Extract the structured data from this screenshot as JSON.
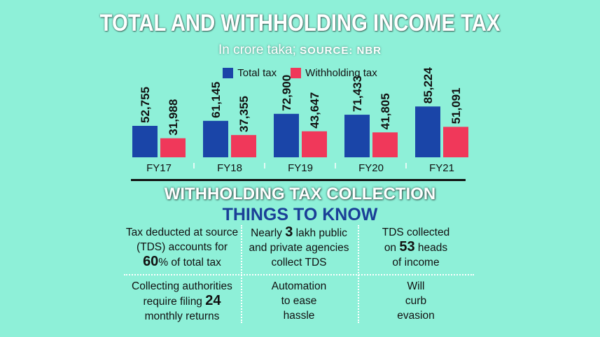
{
  "header": {
    "title": "TOTAL AND WITHHOLDING INCOME TAX",
    "subtitle_unit": "In crore taka;",
    "subtitle_source": "SOURCE: NBR"
  },
  "legend": {
    "total_label": "Total tax",
    "withholding_label": "Withholding tax"
  },
  "colors": {
    "total": "#1a45a8",
    "withholding": "#f0385a",
    "background": "#8ef0d8"
  },
  "chart_data": {
    "type": "bar",
    "categories": [
      "FY17",
      "FY18",
      "FY19",
      "FY20",
      "FY21"
    ],
    "series": [
      {
        "name": "Total tax",
        "values": [
          52755,
          61145,
          72900,
          71433,
          85224
        ]
      },
      {
        "name": "Withholding tax",
        "values": [
          31988,
          37355,
          43647,
          41805,
          51091
        ]
      }
    ],
    "value_labels": {
      "Total tax": [
        "52,755",
        "61,145",
        "72,900",
        "71,433",
        "85,224"
      ],
      "Withholding tax": [
        "31,988",
        "37,355",
        "43,647",
        "41,805",
        "51,091"
      ]
    },
    "ylim": [
      0,
      100000
    ],
    "grid": false,
    "legend_position": "top-center"
  },
  "section": {
    "title": "WITHHOLDING TAX COLLECTION",
    "subtitle": "THINGS TO KNOW"
  },
  "facts": [
    {
      "pre": "Tax deducted at source",
      "mid_pre": "(TDS) accounts for",
      "num": "60",
      "post": "% of total tax"
    },
    {
      "pre": "Nearly ",
      "num": "3",
      "post": " lakh public",
      "line2": "and private agencies",
      "line3": "collect TDS"
    },
    {
      "line1": "TDS collected",
      "pre": "on ",
      "num": "53",
      "post": " heads",
      "line3": "of income"
    },
    {
      "line1": "Collecting authorities",
      "pre": "require filing ",
      "num": "24",
      "line3": "monthly returns"
    },
    {
      "line1": "Automation",
      "line2": "to ease",
      "line3": "hassle"
    },
    {
      "line1": "Will",
      "line2": "curb",
      "line3": "evasion"
    }
  ]
}
